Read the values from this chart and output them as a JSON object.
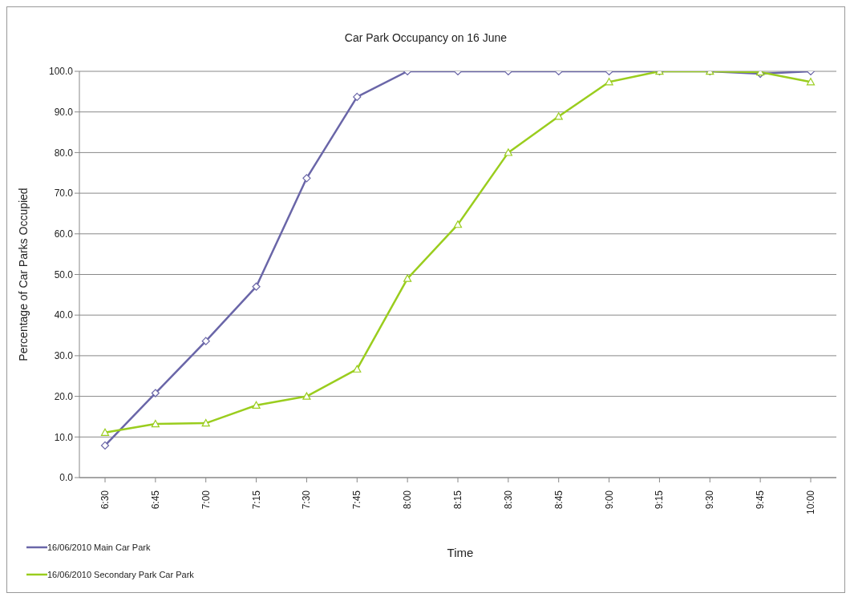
{
  "chart_data": {
    "type": "line",
    "title": "Car Park Occupancy on 16 June",
    "xlabel": "Time",
    "ylabel": "Percentage of Car Parks Occupied",
    "categories": [
      "6:30",
      "6:45",
      "7:00",
      "7:15",
      "7:30",
      "7:45",
      "8:00",
      "8:15",
      "8:30",
      "8:45",
      "9:00",
      "9:15",
      "9:30",
      "9:45",
      "10:00"
    ],
    "series": [
      {
        "name": "16/06/2010 Main Car Park",
        "color": "#6a66a8",
        "marker": "diamond",
        "values": [
          7.9,
          20.8,
          33.6,
          47.0,
          73.7,
          93.7,
          100,
          100,
          100,
          100,
          100,
          100,
          100,
          99.4,
          100
        ]
      },
      {
        "name": "16/06/2010 Secondary Park Car Park",
        "color": "#9acd1e",
        "marker": "triangle",
        "values": [
          11.1,
          13.2,
          13.4,
          17.8,
          20.0,
          26.7,
          49.0,
          62.3,
          80.0,
          88.9,
          97.4,
          100,
          100,
          99.8,
          97.4
        ]
      }
    ],
    "ylim": [
      0,
      100
    ],
    "yticks": [
      {
        "value": 0,
        "label": "0.0"
      },
      {
        "value": 10,
        "label": "10.0"
      },
      {
        "value": 20,
        "label": "20.0"
      },
      {
        "value": 30,
        "label": "30.0"
      },
      {
        "value": 40,
        "label": "40.0"
      },
      {
        "value": 50,
        "label": "50.0"
      },
      {
        "value": 60,
        "label": "60.0"
      },
      {
        "value": 70,
        "label": "70.0"
      },
      {
        "value": 80,
        "label": "80.0"
      },
      {
        "value": 90,
        "label": "90.0"
      },
      {
        "value": 100,
        "label": "100.0"
      }
    ],
    "grid": "y",
    "legend": "bottom left",
    "line_style": "solid"
  }
}
